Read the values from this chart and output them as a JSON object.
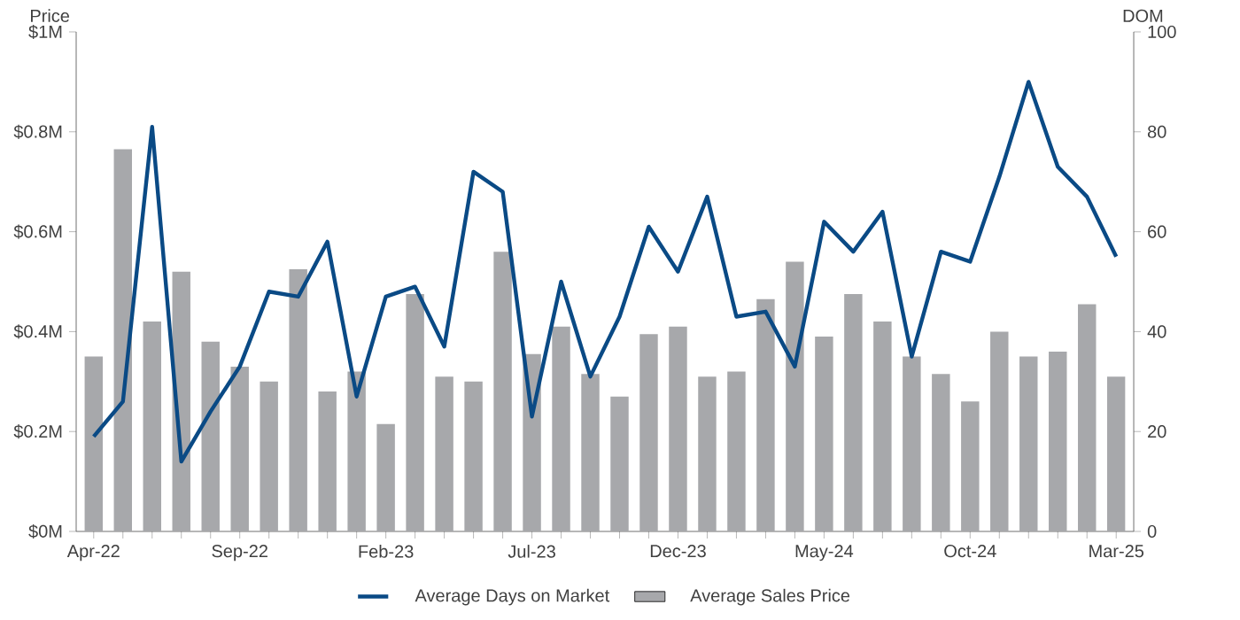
{
  "chart_data": {
    "type": "bar",
    "ylabel": "Price",
    "y2label": "DOM",
    "categories": [
      "Apr-22",
      null,
      null,
      null,
      null,
      "Sep-22",
      null,
      null,
      null,
      null,
      "Feb-23",
      null,
      null,
      null,
      null,
      "Jul-23",
      null,
      null,
      null,
      null,
      "Dec-23",
      null,
      null,
      null,
      null,
      "May-24",
      null,
      null,
      null,
      null,
      "Oct-24",
      null,
      null,
      null,
      null,
      "Mar-25"
    ],
    "series": [
      {
        "name": "Average Days on Market",
        "type": "line",
        "axis": "y2",
        "color": "#0a4a85",
        "values": [
          19,
          26,
          81,
          14,
          24,
          33,
          48,
          47,
          58,
          27,
          47,
          49,
          37,
          72,
          68,
          23,
          50,
          31,
          43,
          61,
          52,
          67,
          43,
          44,
          33,
          62,
          56,
          64,
          35,
          56,
          54,
          71,
          90,
          73,
          67,
          55
        ]
      },
      {
        "name": "Average Sales Price",
        "color": "#a7a8ab",
        "values": [
          0.35,
          0.765,
          0.42,
          0.52,
          0.38,
          0.33,
          0.3,
          0.525,
          0.28,
          0.32,
          0.215,
          0.475,
          0.31,
          0.3,
          0.56,
          0.355,
          0.41,
          0.315,
          0.27,
          0.395,
          0.41,
          0.31,
          0.32,
          0.465,
          0.54,
          0.39,
          0.475,
          0.42,
          0.35,
          0.315,
          0.26,
          0.4,
          0.35,
          0.36,
          0.455,
          0.31
        ]
      }
    ],
    "ylim": [
      0,
      1
    ],
    "yticks": [
      {
        "value": 0,
        "label": "$0M"
      },
      {
        "value": 0.2,
        "label": "$0.2M"
      },
      {
        "value": 0.4,
        "label": "$0.4M"
      },
      {
        "value": 0.6,
        "label": "$0.6M"
      },
      {
        "value": 0.8,
        "label": "$0.8M"
      },
      {
        "value": 1,
        "label": "$1M"
      }
    ],
    "y2lim": [
      0,
      100
    ],
    "y2ticks": [
      0,
      20,
      40,
      60,
      80,
      100
    ],
    "grid": false,
    "legend": "bottom",
    "marker": "none"
  }
}
